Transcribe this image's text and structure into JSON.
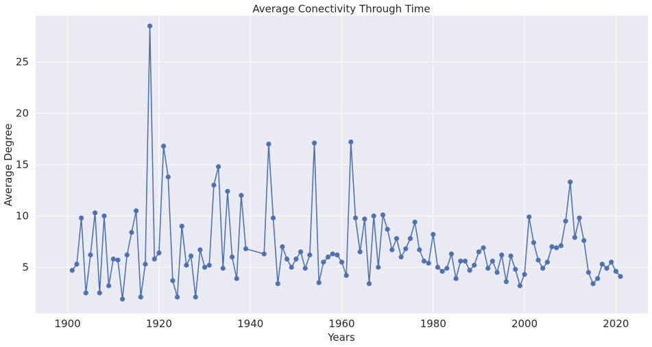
{
  "chart_data": {
    "type": "line",
    "title": "Average Conectivity Through Time",
    "xlabel": "Years",
    "ylabel": "Average Degree",
    "xlim": [
      1893,
      2027
    ],
    "ylim": [
      0.5,
      29.5
    ],
    "xticks": [
      1900,
      1920,
      1940,
      1960,
      1980,
      2000,
      2020
    ],
    "yticks": [
      5,
      10,
      15,
      20,
      25
    ],
    "grid": true,
    "marker": "circle",
    "colors": {
      "background": "#eaeaf2",
      "grid": "#ffffff",
      "series": "#4c72b0",
      "text": "#262626"
    },
    "series": [
      {
        "name": "Average Degree",
        "x": [
          1901,
          1902,
          1903,
          1904,
          1905,
          1906,
          1907,
          1908,
          1909,
          1910,
          1911,
          1912,
          1913,
          1914,
          1915,
          1916,
          1917,
          1918,
          1919,
          1920,
          1921,
          1922,
          1923,
          1924,
          1925,
          1926,
          1927,
          1928,
          1929,
          1930,
          1931,
          1932,
          1933,
          1934,
          1935,
          1936,
          1937,
          1938,
          1939,
          1943,
          1944,
          1945,
          1946,
          1947,
          1948,
          1949,
          1950,
          1951,
          1952,
          1953,
          1954,
          1955,
          1956,
          1957,
          1958,
          1959,
          1960,
          1961,
          1962,
          1963,
          1964,
          1965,
          1966,
          1967,
          1968,
          1969,
          1970,
          1971,
          1972,
          1973,
          1974,
          1975,
          1976,
          1977,
          1978,
          1979,
          1980,
          1981,
          1982,
          1983,
          1984,
          1985,
          1986,
          1987,
          1988,
          1989,
          1990,
          1991,
          1992,
          1993,
          1994,
          1995,
          1996,
          1997,
          1998,
          1999,
          2000,
          2001,
          2002,
          2003,
          2004,
          2005,
          2006,
          2007,
          2008,
          2009,
          2010,
          2011,
          2012,
          2013,
          2014,
          2015,
          2016,
          2017,
          2018,
          2019,
          2020,
          2021
        ],
        "y": [
          4.7,
          5.3,
          9.8,
          2.5,
          6.2,
          10.3,
          2.5,
          10.0,
          3.2,
          5.8,
          5.7,
          1.9,
          6.2,
          8.4,
          10.5,
          2.1,
          5.3,
          28.5,
          5.8,
          6.4,
          16.8,
          13.8,
          3.7,
          2.1,
          9.0,
          5.2,
          6.1,
          2.1,
          6.7,
          5.0,
          5.2,
          13.0,
          14.8,
          4.9,
          12.4,
          6.0,
          3.9,
          12.0,
          6.8,
          6.3,
          17.0,
          9.8,
          3.4,
          7.0,
          5.8,
          5.0,
          5.8,
          6.5,
          4.9,
          6.2,
          17.1,
          3.5,
          5.5,
          6.0,
          6.3,
          6.2,
          5.5,
          4.2,
          17.2,
          9.8,
          6.5,
          9.7,
          3.4,
          10.0,
          5.0,
          10.1,
          8.7,
          6.7,
          7.8,
          6.0,
          6.8,
          7.8,
          9.4,
          6.7,
          5.6,
          5.4,
          8.2,
          5.0,
          4.6,
          4.9,
          6.3,
          3.9,
          5.6,
          5.6,
          4.7,
          5.2,
          6.5,
          6.9,
          4.9,
          5.6,
          4.5,
          6.2,
          3.6,
          6.1,
          4.8,
          3.2,
          4.3,
          9.9,
          7.4,
          5.7,
          4.9,
          5.5,
          7.0,
          6.9,
          7.1,
          9.5,
          13.3,
          7.9,
          9.8,
          7.6,
          4.5,
          3.4,
          3.9,
          5.3,
          4.9,
          5.5,
          4.6,
          4.1
        ]
      }
    ]
  }
}
